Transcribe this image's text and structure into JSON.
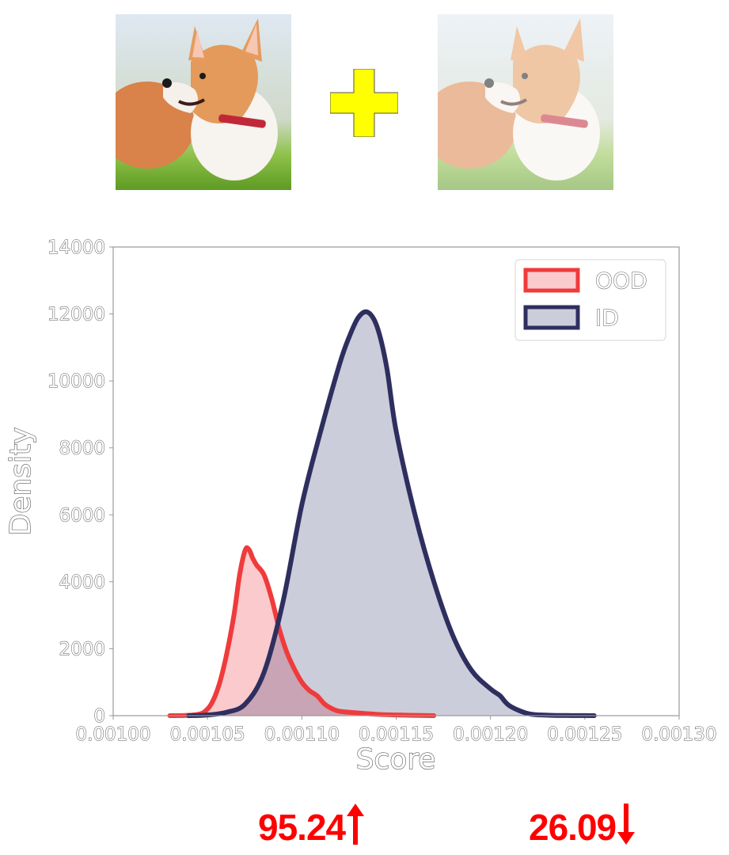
{
  "photos": {
    "left": {
      "description": "corgi-photo"
    },
    "right": {
      "description": "corgi-photo-faded"
    },
    "operator_icon": "plus-icon",
    "operator_color": "#ffff00"
  },
  "chart_data": {
    "type": "area",
    "xlabel": "Score",
    "ylabel": "Density",
    "xlim": [
      0.001,
      0.0013
    ],
    "ylim": [
      0,
      14000
    ],
    "x_ticks": [
      "0.00100",
      "0.00105",
      "0.00110",
      "0.00115",
      "0.00120",
      "0.00125",
      "0.00130"
    ],
    "y_ticks": [
      "0",
      "2000",
      "4000",
      "6000",
      "8000",
      "10000",
      "12000",
      "14000"
    ],
    "legend_position": "top-right",
    "grid": false,
    "series": [
      {
        "name": "OOD",
        "color": "#ef3b3b",
        "fill": "rgba(240,80,90,0.30)",
        "x": [
          0.00103,
          0.001038,
          0.001044,
          0.001048,
          0.001052,
          0.001056,
          0.00106,
          0.001064,
          0.001067,
          0.00107,
          0.001072,
          0.001074,
          0.001076,
          0.00108,
          0.001084,
          0.001088,
          0.001092,
          0.001096,
          0.0011,
          0.001104,
          0.001108,
          0.001112,
          0.001116,
          0.00112,
          0.00113,
          0.00114,
          0.00115,
          0.00116,
          0.00117
        ],
        "values": [
          0,
          5,
          30,
          100,
          350,
          900,
          1800,
          3000,
          4200,
          4950,
          4960,
          4700,
          4500,
          4200,
          3500,
          2600,
          1900,
          1400,
          1000,
          750,
          600,
          350,
          210,
          130,
          80,
          40,
          20,
          10,
          0
        ]
      },
      {
        "name": "ID",
        "color": "#2e2f5f",
        "fill": "rgba(40,45,100,0.24)",
        "x": [
          0.00104,
          0.00105,
          0.00106,
          0.00107,
          0.00108,
          0.00109,
          0.0011,
          0.00111,
          0.00112,
          0.001125,
          0.00113,
          0.001135,
          0.00114,
          0.001145,
          0.00115,
          0.00116,
          0.00117,
          0.00118,
          0.00119,
          0.0012,
          0.001205,
          0.00121,
          0.00122,
          0.00123,
          0.00124,
          0.00125,
          0.001255
        ],
        "values": [
          0,
          20,
          100,
          350,
          1300,
          3400,
          6300,
          8500,
          10500,
          11300,
          11900,
          12050,
          11600,
          10400,
          8500,
          6000,
          4000,
          2400,
          1350,
          800,
          600,
          300,
          60,
          15,
          5,
          2,
          0
        ]
      }
    ]
  },
  "metrics": {
    "left": {
      "value": "95.24",
      "direction": "up",
      "icon": "arrow-up-icon"
    },
    "right": {
      "value": "26.09",
      "direction": "down",
      "icon": "arrow-down-icon"
    },
    "color": "#ff0000"
  }
}
